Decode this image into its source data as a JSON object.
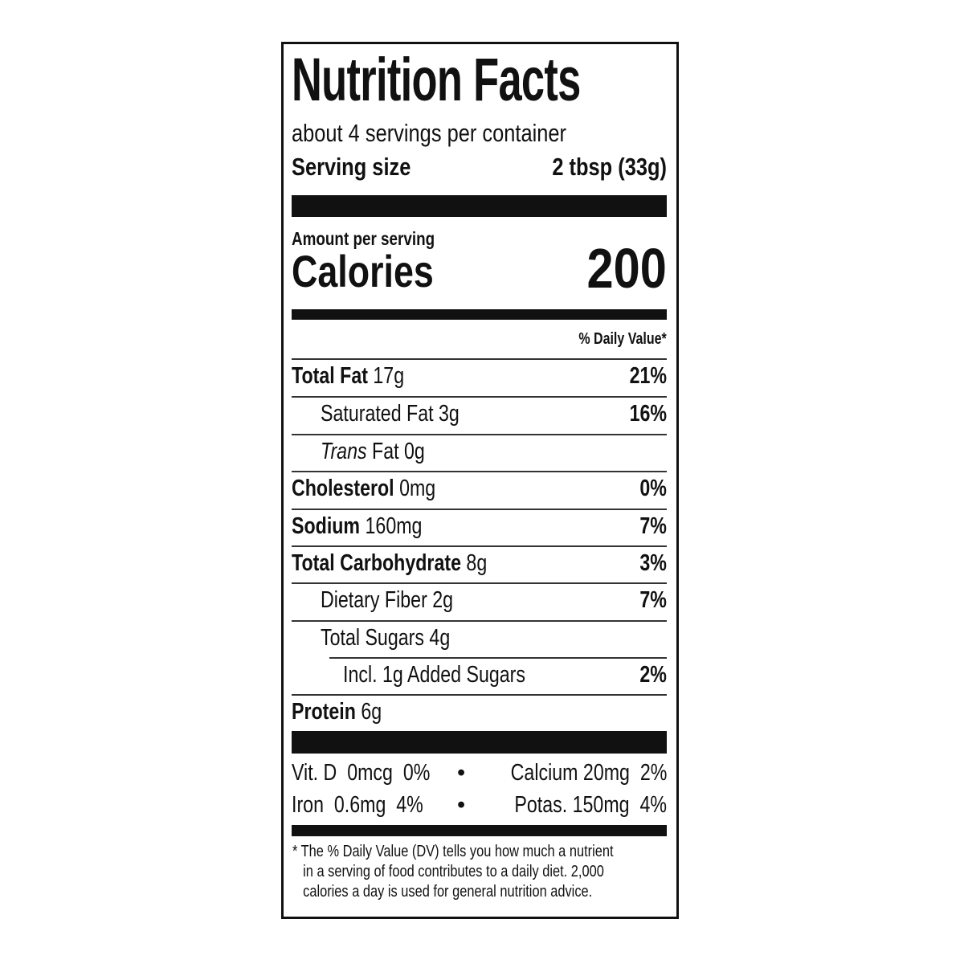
{
  "title": "Nutrition Facts",
  "servings_per_container": "about 4 servings per container",
  "serving_size": {
    "label": "Serving size",
    "value": "2 tbsp (33g)"
  },
  "amount_per_serving": "Amount per serving",
  "calories": {
    "label": "Calories",
    "value": "200"
  },
  "daily_value_header": "% Daily Value*",
  "nutrients": [
    {
      "name": "Total Fat",
      "amount": "17g",
      "dv": "21%"
    },
    {
      "name": "Saturated Fat",
      "amount": "3g",
      "dv": "16%"
    },
    {
      "name": "Trans",
      "name_rest": "Fat",
      "amount": "0g",
      "dv": ""
    },
    {
      "name": "Cholesterol",
      "amount": "0mg",
      "dv": "0%"
    },
    {
      "name": "Sodium",
      "amount": "160mg",
      "dv": "7%"
    },
    {
      "name": "Total Carbohydrate",
      "amount": "8g",
      "dv": "3%"
    },
    {
      "name": "Dietary Fiber",
      "amount": "2g",
      "dv": "7%"
    },
    {
      "name": "Total Sugars",
      "amount": "4g",
      "dv": ""
    },
    {
      "name": "Incl. 1g Added Sugars",
      "amount": "",
      "dv": "2%"
    },
    {
      "name": "Protein",
      "amount": "6g",
      "dv": ""
    }
  ],
  "vitamins": {
    "row1_left": "Vit. D  0mcg  0%",
    "row1_right": "Calcium 20mg  2%",
    "row2_left": "Iron  0.6mg  4%",
    "row2_right": "Potas. 150mg  4%",
    "bullet": "•"
  },
  "footnote": {
    "line1": "* The % Daily Value (DV) tells you how much a nutrient",
    "line2": "in a serving of food contributes to a daily diet. 2,000",
    "line3": "calories a day is used for general nutrition advice."
  }
}
